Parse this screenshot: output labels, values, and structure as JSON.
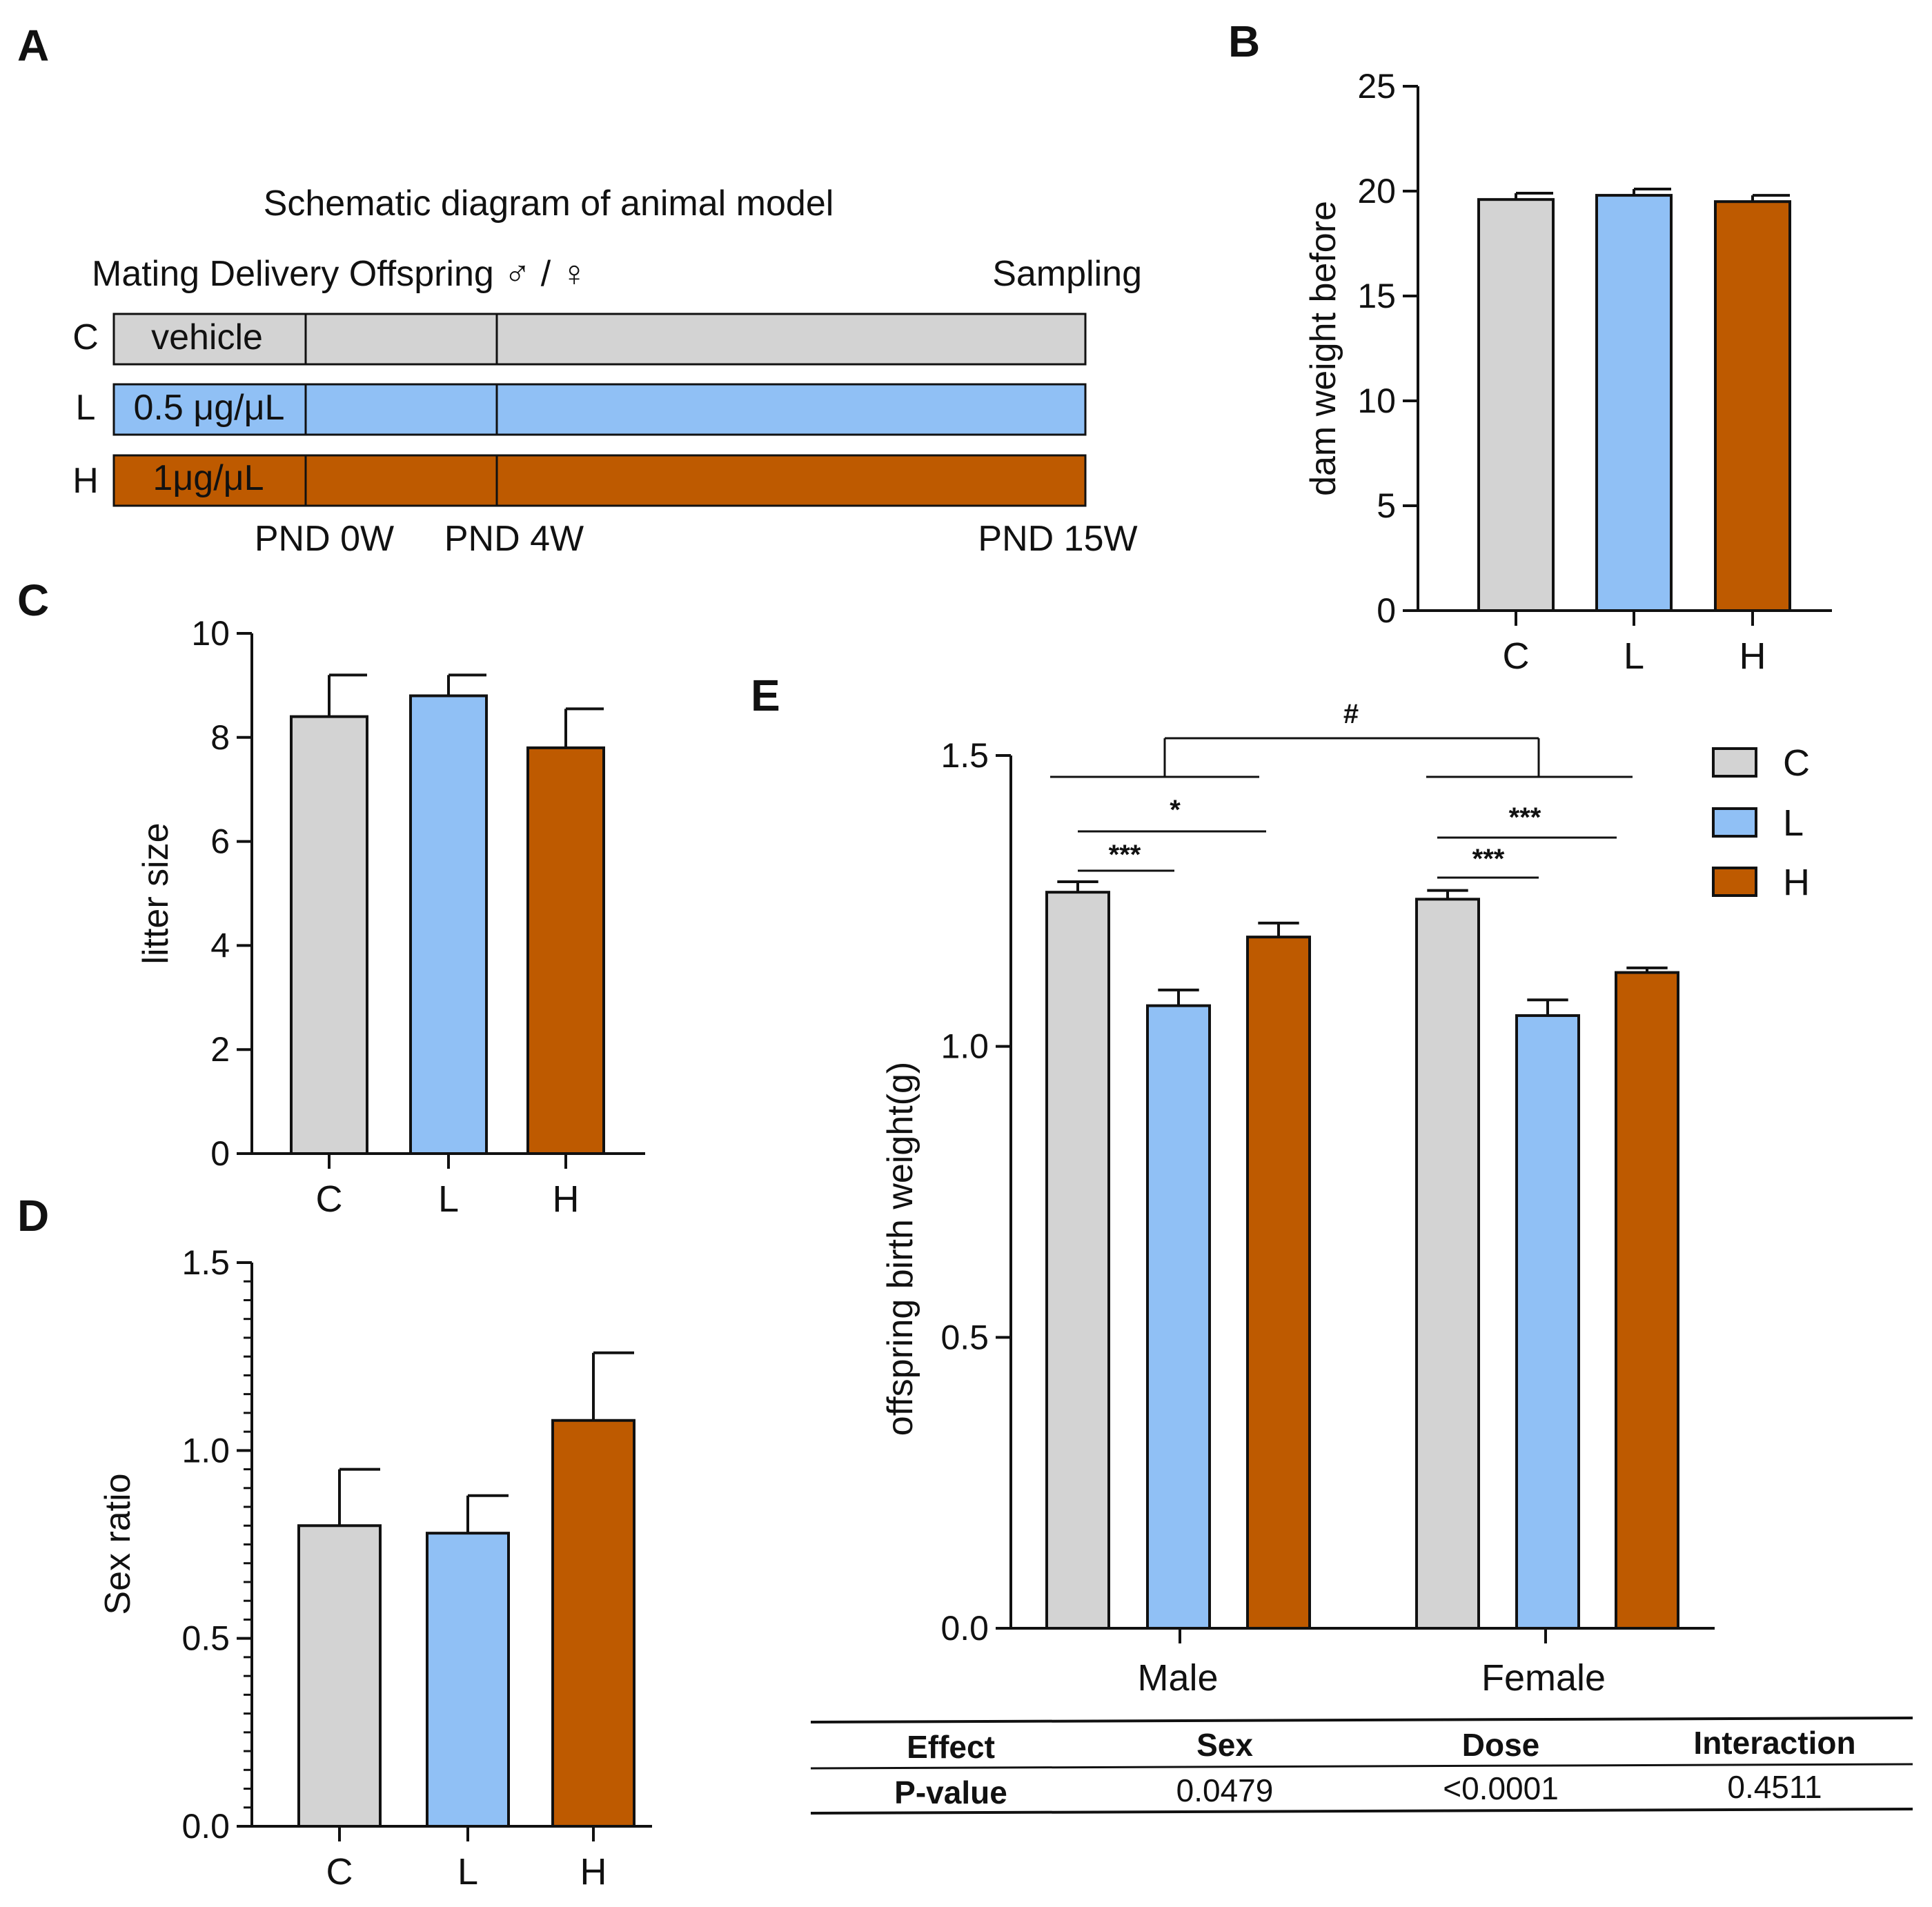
{
  "colors": {
    "C": "#d3d3d3",
    "L": "#90c0f5",
    "H": "#be5a00",
    "stroke": "#111111"
  },
  "panel_letters": {
    "a": "A",
    "b": "B",
    "c": "C",
    "d": "D",
    "e": "E"
  },
  "schematic": {
    "title": "Schematic diagram of animal model",
    "header_left": "Mating Delivery Offspring ♂ / ♀",
    "header_right": "Sampling",
    "rows": [
      {
        "label": "C",
        "dose": "vehicle",
        "color": "#d3d3d3"
      },
      {
        "label": "L",
        "dose": "0.5 μg/μL",
        "color": "#90c0f5"
      },
      {
        "label": "H",
        "dose": "1μg/μL",
        "color": "#be5a00"
      }
    ],
    "timepoints": [
      "PND 0W",
      "PND 4W",
      "PND 15W"
    ]
  },
  "chart_data": [
    {
      "panel": "B",
      "type": "bar",
      "categories": [
        "C",
        "L",
        "H"
      ],
      "values": [
        19.6,
        19.8,
        19.5
      ],
      "errors": [
        0.3,
        0.3,
        0.3
      ],
      "ylabel": "dam weight before",
      "ylim": [
        0,
        25
      ],
      "yticks": [
        0,
        5,
        10,
        15,
        20,
        25
      ]
    },
    {
      "panel": "C",
      "type": "bar",
      "categories": [
        "C",
        "L",
        "H"
      ],
      "values": [
        8.4,
        8.8,
        7.8
      ],
      "errors": [
        0.8,
        0.4,
        0.75
      ],
      "ylabel": "litter size",
      "ylim": [
        0,
        10
      ],
      "yticks": [
        0,
        2,
        4,
        6,
        8,
        10
      ]
    },
    {
      "panel": "D",
      "type": "bar",
      "categories": [
        "C",
        "L",
        "H"
      ],
      "values": [
        0.8,
        0.78,
        1.08
      ],
      "errors": [
        0.15,
        0.1,
        0.18
      ],
      "ylabel": "Sex ratio",
      "ylim": [
        0,
        1.5
      ],
      "yticks": [
        "0.0",
        "0.5",
        "1.0",
        "1.5"
      ]
    },
    {
      "panel": "E",
      "type": "bar",
      "categories": [
        "Male",
        "Female"
      ],
      "series": [
        {
          "name": "C",
          "values": [
            1.265,
            1.253
          ],
          "errors": [
            0.018,
            0.015
          ]
        },
        {
          "name": "L",
          "values": [
            1.07,
            1.053
          ],
          "errors": [
            0.027,
            0.027
          ]
        },
        {
          "name": "H",
          "values": [
            1.188,
            1.127
          ],
          "errors": [
            0.024,
            0.008
          ]
        }
      ],
      "ylabel": "offspring birth weight(g)",
      "ylim": [
        0,
        1.5
      ],
      "yticks": [
        "0.0",
        "0.5",
        "1.0",
        "1.5"
      ],
      "legend": "top-right",
      "annotations": [
        {
          "text": "#",
          "between": "Male vs Female"
        },
        {
          "text": "***",
          "group": "Male",
          "between": "C vs L"
        },
        {
          "text": "*",
          "group": "Male",
          "between": "C vs H"
        },
        {
          "text": "***",
          "group": "Female",
          "between": "C vs L"
        },
        {
          "text": "***",
          "group": "Female",
          "between": "C vs H"
        }
      ]
    }
  ],
  "stats_table": {
    "header": [
      "Effect",
      "Sex",
      "Dose",
      "Interaction"
    ],
    "row": [
      "P-value",
      "0.0479",
      "<0.0001",
      "0.4511"
    ]
  }
}
